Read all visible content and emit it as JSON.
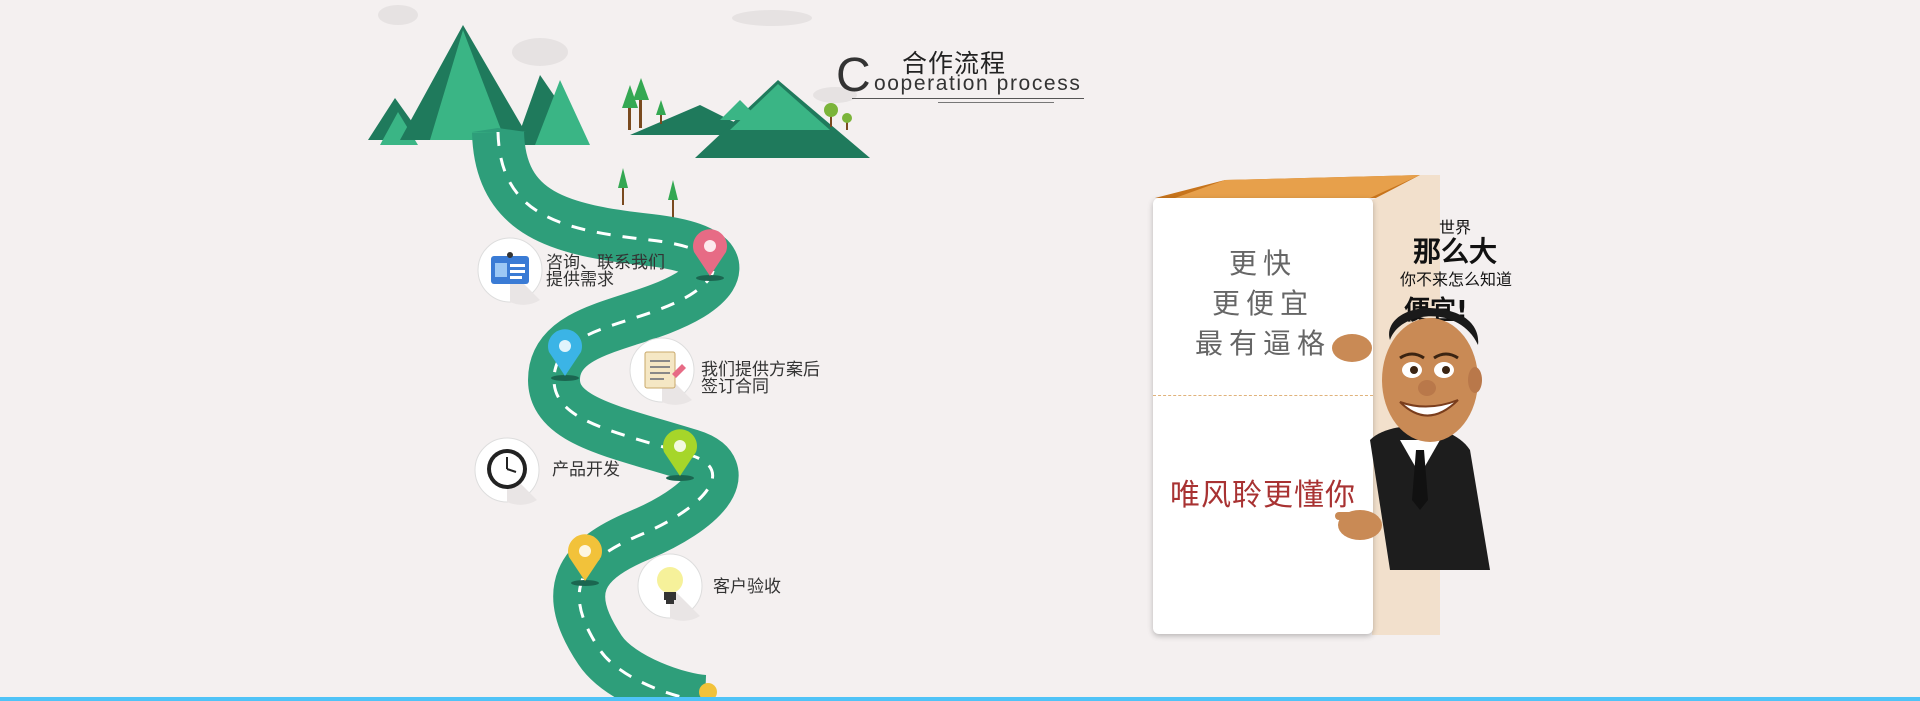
{
  "header": {
    "initial": "C",
    "title_cn": "合作流程",
    "title_en": "ooperation process"
  },
  "steps": [
    {
      "line1": "咨询、联系我们",
      "line2": "提供需求",
      "icon": "contact-card-icon"
    },
    {
      "line1": "我们提供方案后",
      "line2": "签订合同",
      "icon": "document-icon"
    },
    {
      "line1": "产品开发",
      "line2": "",
      "icon": "clock-icon"
    },
    {
      "line1": "客户验收",
      "line2": "",
      "icon": "lightbulb-icon"
    }
  ],
  "promo": {
    "lines": [
      "更快",
      "更便宜",
      "最有逼格"
    ],
    "slogan": "唯风聆更懂你",
    "bubble": {
      "world": "世界",
      "so_big": "那么大",
      "come": "你不来怎么知道",
      "cheap": "便宜!"
    }
  },
  "colors": {
    "road": "#2e9e7a",
    "mountain_dark": "#1f7a5c",
    "mountain_light": "#3ab585",
    "pin_pink": "#e76b85",
    "pin_blue": "#3bb4e6",
    "pin_green": "#a6d62a",
    "pin_yellow": "#f2c23a",
    "bottom_rule": "#4fc3f7"
  }
}
